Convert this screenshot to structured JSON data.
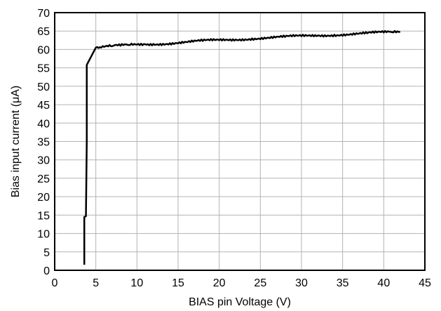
{
  "chart_data": {
    "type": "line",
    "title": "",
    "xlabel": "BIAS pin Voltage (V)",
    "ylabel": "Bias input current (μA)",
    "xlim": [
      0,
      45
    ],
    "ylim": [
      0,
      70
    ],
    "xticks": [
      0,
      5,
      10,
      15,
      20,
      25,
      30,
      35,
      40,
      45
    ],
    "yticks": [
      0,
      5,
      10,
      15,
      20,
      25,
      30,
      35,
      40,
      45,
      50,
      55,
      60,
      65,
      70
    ],
    "grid": true,
    "line_color": "#000000",
    "series": [
      {
        "x": [
          3.6,
          3.6,
          3.8,
          3.8,
          3.9,
          3.9,
          5.0,
          5.5,
          6.0,
          7.0,
          8.0,
          9.0,
          10.0,
          11.0,
          12.0,
          14.0,
          16.0,
          18.0,
          20.0,
          22.0,
          24.0,
          26.0,
          28.0,
          30.0,
          32.0,
          34.0,
          36.0,
          38.0,
          40.0,
          41.0,
          42.0
        ],
        "y": [
          1.5,
          14.5,
          14.7,
          15.0,
          35.0,
          55.8,
          60.5,
          60.6,
          60.7,
          60.9,
          61.0,
          61.2,
          61.3,
          61.4,
          61.5,
          61.7,
          62.0,
          62.3,
          62.5,
          62.7,
          63.0,
          63.2,
          63.4,
          63.6,
          63.8,
          64.0,
          64.2,
          64.4,
          64.6,
          64.7,
          64.8
        ]
      }
    ]
  }
}
